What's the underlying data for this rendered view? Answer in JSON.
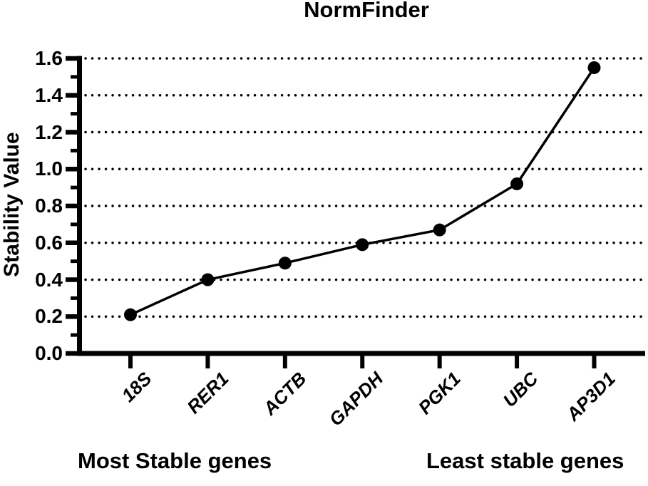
{
  "chart_data": {
    "type": "line",
    "title": "NormFinder",
    "xlabel": "",
    "ylabel": "Stability Value",
    "categories": [
      "18S",
      "RER1",
      "ACTB",
      "GAPDH",
      "PGK1",
      "UBC",
      "AP3D1"
    ],
    "series": [
      {
        "name": "Stability Value",
        "values": [
          0.21,
          0.4,
          0.49,
          0.59,
          0.67,
          0.92,
          1.55
        ]
      }
    ],
    "ylim": [
      0.0,
      1.6
    ],
    "ytick_step": 0.2,
    "ytick_labels": [
      "0.0",
      "0.2",
      "0.4",
      "0.6",
      "0.8",
      "1.0",
      "1.2",
      "1.4",
      "1.6"
    ],
    "minor_tick_step": 0.1,
    "grid": {
      "axis": "y",
      "style": "dotted"
    },
    "legend": "none",
    "marker": "filled-circle",
    "colors": {
      "line": "#000000",
      "marker": "#000000",
      "text": "#000000",
      "grid": "#000000",
      "background": "#ffffff"
    },
    "annotations": [
      {
        "id": "most-stable",
        "text": "Most Stable genes",
        "position": "bottom-left"
      },
      {
        "id": "least-stable",
        "text": "Least stable genes",
        "position": "bottom-right"
      }
    ]
  }
}
